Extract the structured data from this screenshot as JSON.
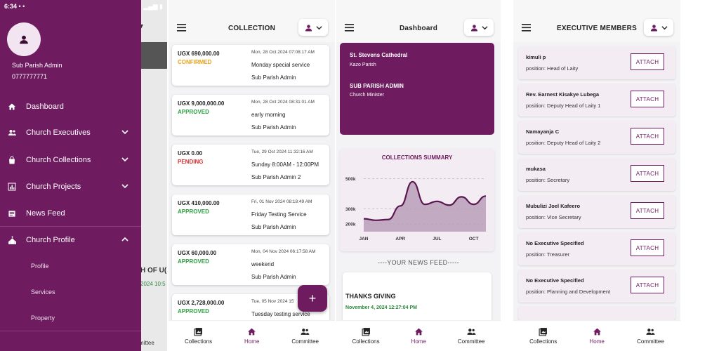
{
  "status_bar": {
    "time": "6:34",
    "indicators": "• •"
  },
  "drawer": {
    "user_name": "Sub Parish Admin",
    "user_phone": "0777777771",
    "items": [
      {
        "label": "Dashboard",
        "icon": "home-icon"
      },
      {
        "label": "Church Executives",
        "icon": "people-icon"
      },
      {
        "label": "Church Collections",
        "icon": "bag-icon"
      },
      {
        "label": "Church Projects",
        "icon": "chart-icon"
      },
      {
        "label": "News Feed",
        "icon": "news-icon"
      },
      {
        "label": "Church Profile",
        "icon": "church-icon"
      }
    ],
    "subitems": [
      "Profile",
      "Services",
      "Property"
    ],
    "background_ghost": {
      "title": "H OF U(",
      "date": "2024 10:5",
      "nav": "mittee"
    }
  },
  "collection": {
    "title": "COLLECTION",
    "cards": [
      {
        "amount": "UGX 690,000.00",
        "status": "CONFIRMED",
        "date": "Mon, 28 Oct 2024 07:08:17 AM",
        "name": "Monday special service",
        "by": "Sub Parish Admin"
      },
      {
        "amount": "UGX 9,000,000.00",
        "status": "APPROVED",
        "date": "Mon, 28 Oct 2024 08:31:01 AM",
        "name": "early morning",
        "by": "Sub Parish Admin"
      },
      {
        "amount": "UGX 0.00",
        "status": "PENDING",
        "date": "Tue, 29 Oct 2024 11:32:16 AM",
        "name": "Sunday 8:00AM - 12:00PM",
        "by": "Sub Parish Admin 2"
      },
      {
        "amount": "UGX 410,000.00",
        "status": "APPROVED",
        "date": "Fri, 01 Nov 2024 08:18:49 AM",
        "name": "Friday Testing Service",
        "by": "Sub Parish Admin"
      },
      {
        "amount": "UGX 60,000.00",
        "status": "APPROVED",
        "date": "Mon, 04 Nov 2024 06:17:58 AM",
        "name": "weekend",
        "by": "Sub Parish Admin"
      },
      {
        "amount": "UGX 2,728,000.00",
        "status": "APPROVED",
        "date": "Tue, 05 Nov 2024 15",
        "name": "Tuesday testing service",
        "by": ""
      }
    ],
    "fab": "+"
  },
  "dashboard": {
    "title": "Dashboard",
    "church": "St. Stevens Cathedral",
    "parish": "Kazo Parish",
    "role": "SUB PARISH ADMIN",
    "position": "Church Minister",
    "news_header": "----YOUR NEWS FEED-----",
    "news": {
      "title": "THANKS GIVING",
      "date": "November 4, 2024 12:27:04 PM"
    }
  },
  "chart_data": {
    "type": "area",
    "title": "COLLECTIONS SUMMARY",
    "x": [
      0,
      1,
      2,
      3,
      4,
      5,
      6,
      7,
      8,
      9,
      10
    ],
    "categories": [
      "JAN",
      "APR",
      "JUL",
      "OCT"
    ],
    "category_positions": [
      0,
      3,
      6,
      9
    ],
    "values": [
      235000,
      225000,
      230000,
      320000,
      480000,
      330000,
      350000,
      325000,
      380000,
      330000,
      385000
    ],
    "yticks": [
      "500k",
      "300k",
      "200k"
    ],
    "ytick_values": [
      500000,
      300000,
      200000
    ],
    "ylim": [
      150000,
      530000
    ],
    "grid": true,
    "colors": {
      "line": "#5a1850",
      "fill": "#b8a0b8"
    }
  },
  "members": {
    "title": "EXECUTIVE MEMBERS",
    "position_prefix": "position:",
    "attach_label": "ATTACH",
    "items": [
      {
        "name": "kimuli p",
        "position": "Head of Laity"
      },
      {
        "name": "Rev. Earnest Kisakye Lubega",
        "position": "Deputy Head of Laity 1"
      },
      {
        "name": "Namayanja C",
        "position": "Deputy Head of Laity 2"
      },
      {
        "name": "mukasa",
        "position": "Secretary"
      },
      {
        "name": "Mubulizi Joel Kafeero",
        "position": "Vice Secretary"
      },
      {
        "name": "No Executive Specified",
        "position": "Treasurer"
      },
      {
        "name": "No Executive Specified",
        "position": "Planning and Development"
      }
    ]
  },
  "bottom_nav": {
    "collections": "Collections",
    "home": "Home",
    "committee": "Committee"
  },
  "colors": {
    "brand": "#6e1b5f",
    "approved": "#2f9e44",
    "confirmed": "#e8a317",
    "pending": "#e03131"
  }
}
